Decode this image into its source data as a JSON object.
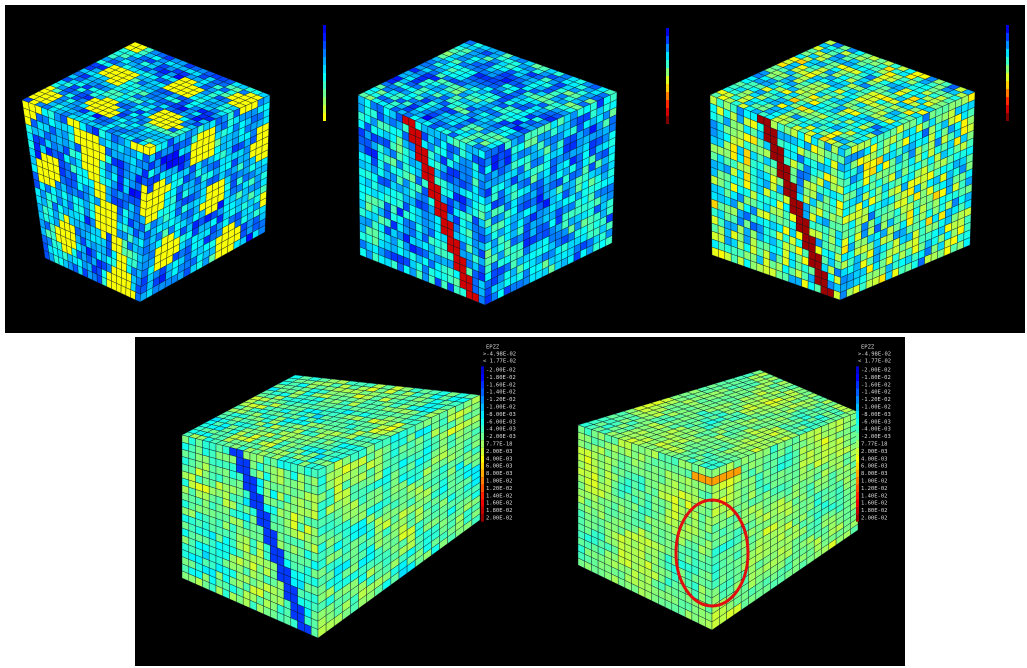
{
  "legends": [
    {
      "title": "EPZZ",
      "max": ">-4.98E-02",
      "min": "< 1.77E-02",
      "labels": [
        "-2.00E-02",
        "-1.80E-02",
        "-1.60E-02",
        "-1.40E-02",
        "-1.20E-02",
        "-1.00E-02",
        "-8.00E-03",
        "-6.00E-03",
        "-4.00E-03",
        "-2.00E-03",
        "7.77E-18",
        "2.00E-03",
        "4.00E-03",
        "6.00E-03",
        "8.00E-03",
        "1.00E-02",
        "1.20E-02",
        "1.40E-02",
        "1.60E-02",
        "1.80E-02",
        "2.00E-02"
      ]
    },
    {
      "title": "EPZZ",
      "max": ">-4.98E-02",
      "min": "< 1.77E-02",
      "labels": [
        "-2.00E-02",
        "-1.80E-02",
        "-1.60E-02",
        "-1.40E-02",
        "-1.20E-02",
        "-1.00E-02",
        "-8.00E-03",
        "-6.00E-03",
        "-4.00E-03",
        "-2.00E-03",
        "7.77E-18",
        "2.00E-03",
        "4.00E-03",
        "6.00E-03",
        "8.00E-03",
        "1.00E-02",
        "1.20E-02",
        "1.40E-02",
        "1.60E-02",
        "1.80E-02",
        "2.00E-02"
      ]
    }
  ]
}
